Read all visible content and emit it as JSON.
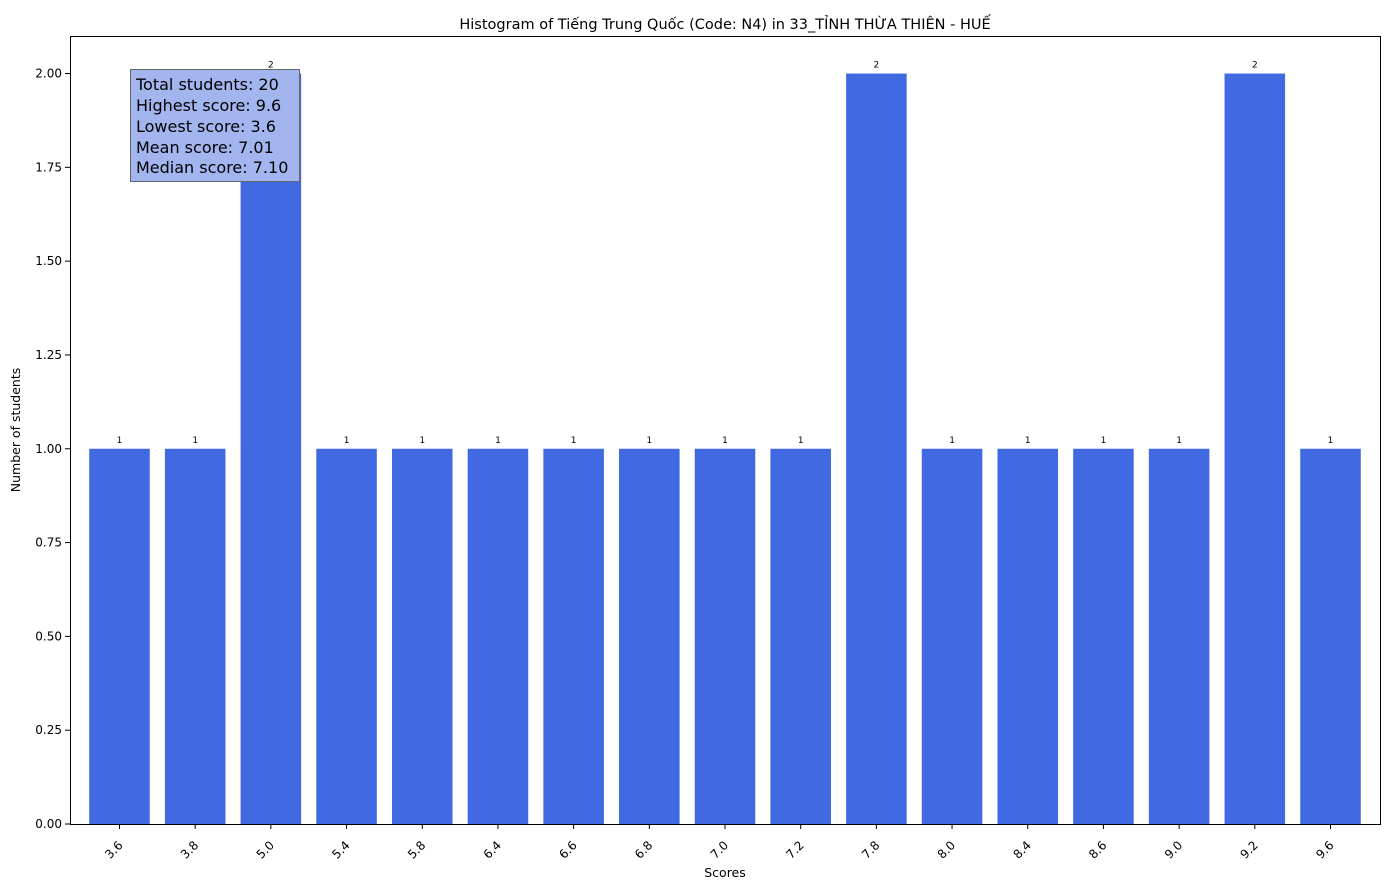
{
  "chart_data": {
    "type": "bar",
    "title": "Histogram of Tiếng Trung Quốc (Code: N4) in 33_TỈNH THỪA THIÊN - HUẾ",
    "xlabel": "Scores",
    "ylabel": "Number of students",
    "categories": [
      "3.6",
      "3.8",
      "5.0",
      "5.4",
      "5.8",
      "6.4",
      "6.6",
      "6.8",
      "7.0",
      "7.2",
      "7.8",
      "8.0",
      "8.4",
      "8.6",
      "9.0",
      "9.2",
      "9.6"
    ],
    "values": [
      1,
      1,
      2,
      1,
      1,
      1,
      1,
      1,
      1,
      1,
      2,
      1,
      1,
      1,
      1,
      2,
      1
    ],
    "ylim": [
      0,
      2.1
    ],
    "yticks": [
      "0.00",
      "0.25",
      "0.50",
      "0.75",
      "1.00",
      "1.25",
      "1.50",
      "1.75",
      "2.00"
    ],
    "bar_color": "#4169e1",
    "grid": false,
    "stats_box": {
      "lines": [
        "Total students: 20",
        "Highest score: 9.6",
        "Lowest score: 3.6",
        "Mean score: 7.01",
        "Median score: 7.10"
      ],
      "background": "#a3b5ef",
      "placement": "top-left"
    }
  }
}
